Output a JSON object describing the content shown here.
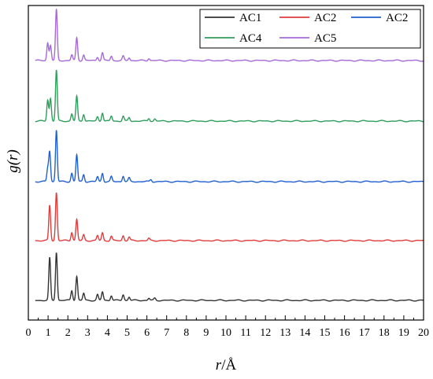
{
  "chart_data": {
    "type": "line",
    "xlabel_var": "r",
    "xlabel_unit": "/Å",
    "ylabel_prefix": "g(",
    "ylabel_var": "r",
    "ylabel_suffix": ")",
    "xlim": [
      0,
      20
    ],
    "x_ticks": [
      0,
      1,
      2,
      3,
      4,
      5,
      6,
      7,
      8,
      9,
      10,
      11,
      12,
      13,
      14,
      15,
      16,
      17,
      18,
      19,
      20
    ],
    "grid": false,
    "legend_position": "top-right",
    "y_tick_labels": false,
    "series": [
      {
        "name": "AC1",
        "color": "#333333",
        "offset": 0,
        "peaks": [
          [
            1.08,
            0.6
          ],
          [
            1.42,
            0.68
          ],
          [
            2.2,
            0.14
          ],
          [
            2.45,
            0.34
          ],
          [
            2.8,
            0.1
          ],
          [
            3.5,
            0.08
          ],
          [
            3.75,
            0.12
          ],
          [
            4.2,
            0.07
          ],
          [
            4.8,
            0.08
          ],
          [
            5.1,
            0.05
          ],
          [
            6.1,
            0.03
          ],
          [
            6.4,
            0.03
          ]
        ]
      },
      {
        "name": "AC2",
        "color": "#e03c3c",
        "offset": 1,
        "peaks": [
          [
            1.08,
            0.5
          ],
          [
            1.42,
            0.68
          ],
          [
            2.2,
            0.12
          ],
          [
            2.45,
            0.3
          ],
          [
            2.8,
            0.08
          ],
          [
            3.5,
            0.07
          ],
          [
            3.75,
            0.11
          ],
          [
            4.2,
            0.06
          ],
          [
            4.8,
            0.07
          ],
          [
            5.1,
            0.05
          ],
          [
            6.1,
            0.03
          ]
        ]
      },
      {
        "name": "AC2",
        "color": "#1f5fd1",
        "offset": 2,
        "peaks": [
          [
            0.98,
            0.18
          ],
          [
            1.08,
            0.42
          ],
          [
            1.42,
            0.73
          ],
          [
            2.2,
            0.12
          ],
          [
            2.45,
            0.38
          ],
          [
            2.8,
            0.1
          ],
          [
            3.5,
            0.07
          ],
          [
            3.75,
            0.12
          ],
          [
            4.2,
            0.07
          ],
          [
            4.8,
            0.08
          ],
          [
            5.1,
            0.05
          ],
          [
            6.2,
            0.03
          ]
        ]
      },
      {
        "name": "AC4",
        "color": "#2e9e5b",
        "offset": 3,
        "peaks": [
          [
            0.98,
            0.3
          ],
          [
            1.12,
            0.32
          ],
          [
            1.42,
            0.72
          ],
          [
            2.2,
            0.1
          ],
          [
            2.45,
            0.35
          ],
          [
            2.8,
            0.1
          ],
          [
            3.5,
            0.06
          ],
          [
            3.75,
            0.12
          ],
          [
            4.2,
            0.07
          ],
          [
            4.8,
            0.07
          ],
          [
            5.1,
            0.05
          ],
          [
            6.1,
            0.04
          ],
          [
            6.4,
            0.03
          ]
        ]
      },
      {
        "name": "AC5",
        "color": "#a66ad8",
        "offset": 4,
        "peaks": [
          [
            0.98,
            0.25
          ],
          [
            1.12,
            0.22
          ],
          [
            1.42,
            0.72
          ],
          [
            2.2,
            0.08
          ],
          [
            2.45,
            0.32
          ],
          [
            2.8,
            0.08
          ],
          [
            3.5,
            0.05
          ],
          [
            3.75,
            0.11
          ],
          [
            4.2,
            0.06
          ],
          [
            4.8,
            0.06
          ],
          [
            5.1,
            0.04
          ],
          [
            6.1,
            0.03
          ]
        ]
      }
    ]
  }
}
